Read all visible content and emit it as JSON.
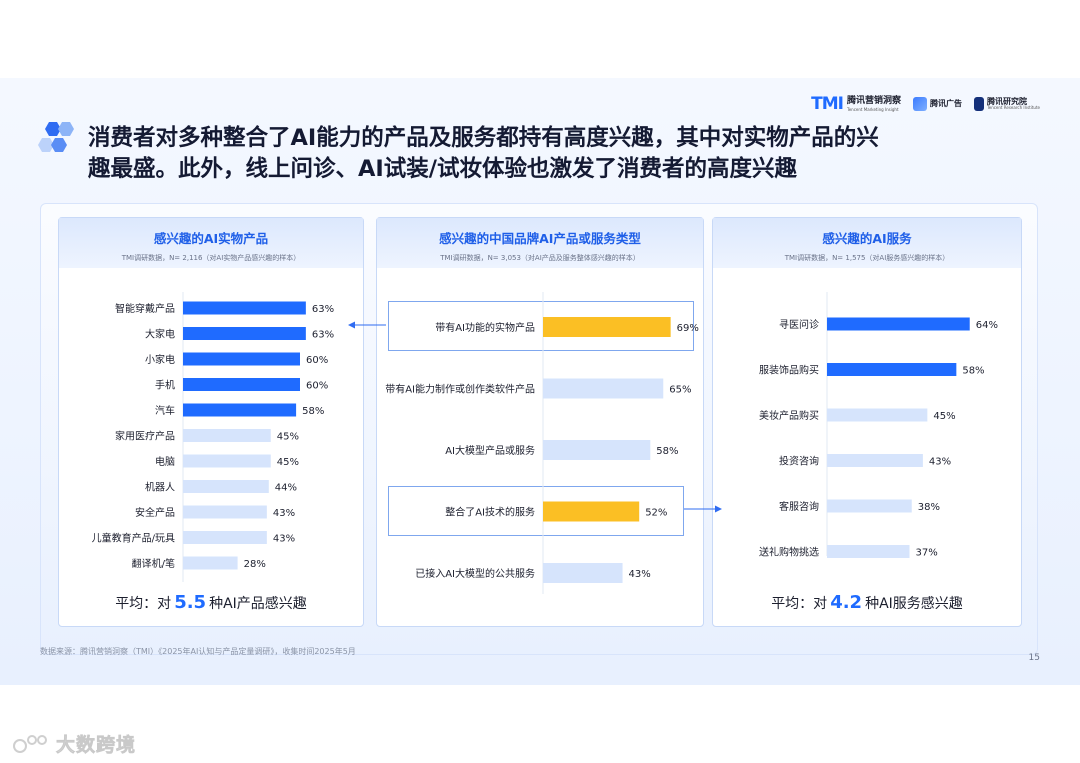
{
  "header": {
    "logos": [
      {
        "mark": "TMI",
        "name": "腾讯营销洞察",
        "sub": "Tencent Marketing Insight"
      },
      {
        "name": "腾讯广告"
      },
      {
        "name": "腾讯研究院",
        "sub": "Tencent Research Institute"
      }
    ],
    "headline_line1": "消费者对多种整合了AI能力的产品及服务都持有高度兴趣，其中对实物产品的兴",
    "headline_line2": "趣最盛。此外，线上问诊、AI试装/试妆体验也激发了消费者的高度兴趣"
  },
  "colors": {
    "dark_bar": "#1f6bff",
    "light_bar": "#d6e4fc",
    "highlight_bar": "#fbbf24",
    "accent": "#1f6bff"
  },
  "panels": {
    "left": {
      "title": "感兴趣的AI实物产品",
      "note": "TMI调研数据，N= 2,116（对AI实物产品感兴趣的样本）",
      "avg_prefix": "平均：对",
      "avg_value": "5.5",
      "avg_suffix": "种AI产品感兴趣"
    },
    "middle": {
      "title": "感兴趣的中国品牌AI产品或服务类型",
      "note": "TMI调研数据，N= 3,053（对AI产品及服务整体感兴趣的样本）"
    },
    "right": {
      "title": "感兴趣的AI服务",
      "note": "TMI调研数据，N= 1,575（对AI服务感兴趣的样本）",
      "avg_prefix": "平均：对",
      "avg_value": "4.2",
      "avg_suffix": "种AI服务感兴趣"
    }
  },
  "chart_data": [
    {
      "type": "bar",
      "orientation": "horizontal",
      "title": "感兴趣的AI实物产品",
      "categories": [
        "智能穿戴产品",
        "大家电",
        "小家电",
        "手机",
        "汽车",
        "家用医疗产品",
        "电脑",
        "机器人",
        "安全产品",
        "儿童教育产品/玩具",
        "翻译机/笔"
      ],
      "values": [
        63,
        63,
        60,
        60,
        58,
        45,
        45,
        44,
        43,
        43,
        28
      ],
      "labels": [
        "63%",
        "63%",
        "60%",
        "60%",
        "58%",
        "45%",
        "45%",
        "44%",
        "43%",
        "43%",
        "28%"
      ],
      "highlighted_top": 5,
      "unit": "%"
    },
    {
      "type": "bar",
      "orientation": "horizontal",
      "title": "感兴趣的中国品牌AI产品或服务类型",
      "categories": [
        "带有AI功能的实物产品",
        "带有AI能力制作或创作类软件产品",
        "AI大模型产品或服务",
        "整合了AI技术的服务",
        "已接入AI大模型的公共服务"
      ],
      "values": [
        69,
        65,
        58,
        52,
        43
      ],
      "labels": [
        "69%",
        "65%",
        "58%",
        "52%",
        "43%"
      ],
      "highlighted": [
        0,
        3
      ],
      "unit": "%"
    },
    {
      "type": "bar",
      "orientation": "horizontal",
      "title": "感兴趣的AI服务",
      "categories": [
        "寻医问诊",
        "服装饰品购买",
        "美妆产品购买",
        "投资咨询",
        "客服咨询",
        "送礼购物挑选"
      ],
      "values": [
        64,
        58,
        45,
        43,
        38,
        37
      ],
      "labels": [
        "64%",
        "58%",
        "45%",
        "43%",
        "38%",
        "37%"
      ],
      "highlighted_top": 2,
      "unit": "%"
    }
  ],
  "footer": {
    "source": "数据来源：腾讯营销洞察（TMI）《2025年AI认知与产品定量调研》，收集时间2025年5月",
    "page": "15"
  },
  "watermark": {
    "text": "大数跨境"
  }
}
